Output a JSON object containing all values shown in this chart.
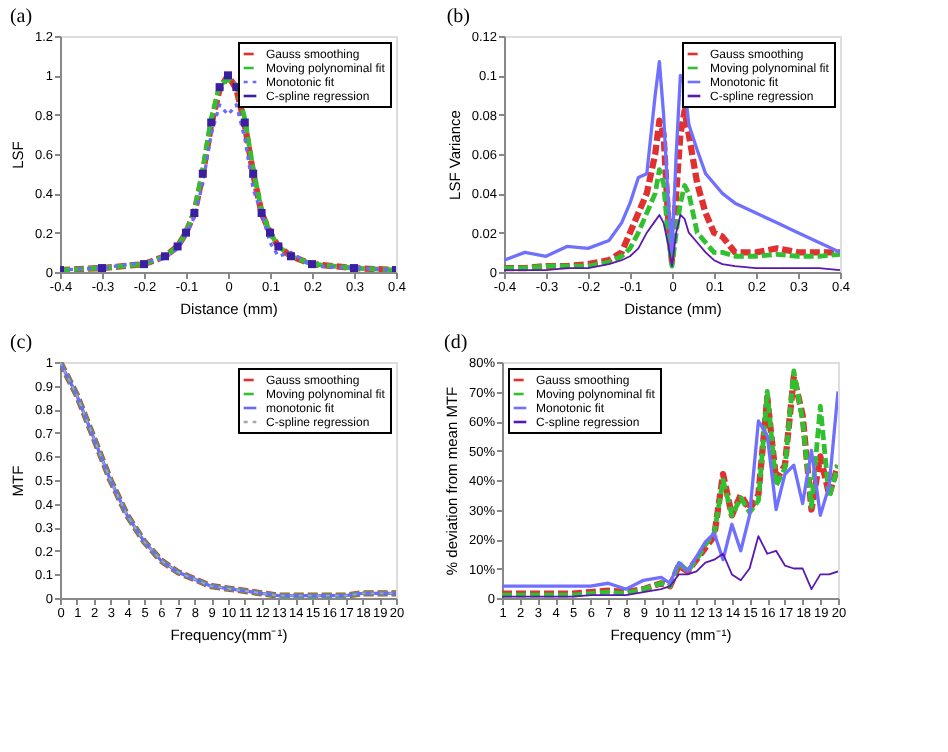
{
  "chart_data": [
    {
      "type": "line",
      "title": "(a)",
      "xlabel": "Distance (mm)",
      "ylabel": "LSF",
      "xlim": [
        -0.4,
        0.4
      ],
      "xticks": [
        -0.4,
        -0.3,
        -0.2,
        -0.1,
        0,
        0.1,
        0.2,
        0.3,
        0.4
      ],
      "ylim": [
        0,
        1.2
      ],
      "yticks": [
        0,
        0.2,
        0.4,
        0.6,
        0.8,
        1,
        1.2
      ],
      "legend": "top right",
      "x": [
        -0.4,
        -0.3,
        -0.2,
        -0.15,
        -0.12,
        -0.1,
        -0.08,
        -0.06,
        -0.04,
        -0.02,
        0,
        0.02,
        0.04,
        0.06,
        0.08,
        0.1,
        0.12,
        0.15,
        0.2,
        0.3,
        0.4
      ],
      "series": [
        {
          "name": "Gauss smoothing",
          "color": "#e03030",
          "line_style": "dashed",
          "values": [
            0.01,
            0.02,
            0.04,
            0.08,
            0.13,
            0.2,
            0.3,
            0.5,
            0.75,
            0.93,
            1.0,
            0.93,
            0.75,
            0.5,
            0.3,
            0.2,
            0.13,
            0.08,
            0.04,
            0.02,
            0.01
          ]
        },
        {
          "name": "Moving polynominal fit",
          "color": "#30c030",
          "line_style": "dashed",
          "values": [
            0.01,
            0.02,
            0.04,
            0.08,
            0.13,
            0.2,
            0.31,
            0.52,
            0.78,
            0.95,
            0.98,
            0.95,
            0.78,
            0.52,
            0.31,
            0.2,
            0.13,
            0.08,
            0.04,
            0.02,
            0.01
          ]
        },
        {
          "name": "Monotonic fit",
          "color": "#6a6aff",
          "line_style": "dotted",
          "values": [
            0.01,
            0.02,
            0.05,
            0.07,
            0.12,
            0.19,
            0.28,
            0.45,
            0.7,
            0.85,
            0.8,
            0.85,
            0.68,
            0.42,
            0.3,
            0.15,
            0.08,
            0.1,
            0.03,
            0.02,
            0.01
          ]
        },
        {
          "name": "C-spline regression",
          "color": "#3a20a0",
          "type": "scatter",
          "marker": "square",
          "values": [
            0.01,
            0.02,
            0.04,
            0.08,
            0.13,
            0.2,
            0.3,
            0.5,
            0.76,
            0.94,
            1.0,
            0.94,
            0.76,
            0.5,
            0.3,
            0.2,
            0.13,
            0.08,
            0.04,
            0.02,
            0.01
          ]
        }
      ]
    },
    {
      "type": "line",
      "title": "(b)",
      "xlabel": "Distance (mm)",
      "ylabel": "LSF Variance",
      "xlim": [
        -0.4,
        0.4
      ],
      "xticks": [
        -0.4,
        -0.3,
        -0.2,
        -0.1,
        0,
        0.1,
        0.2,
        0.3,
        0.4
      ],
      "ylim": [
        0,
        0.12
      ],
      "yticks": [
        0,
        0.02,
        0.04,
        0.06,
        0.08,
        0.1,
        0.12
      ],
      "legend": "top right",
      "x": [
        -0.4,
        -0.35,
        -0.3,
        -0.25,
        -0.2,
        -0.15,
        -0.12,
        -0.1,
        -0.08,
        -0.06,
        -0.04,
        -0.03,
        -0.02,
        -0.01,
        0,
        0.01,
        0.02,
        0.03,
        0.04,
        0.06,
        0.08,
        0.1,
        0.12,
        0.15,
        0.2,
        0.25,
        0.3,
        0.35,
        0.4
      ],
      "series": [
        {
          "name": "Gauss smoothing",
          "color": "#e03030",
          "line_style": "dashed",
          "values": [
            0.002,
            0.002,
            0.003,
            0.003,
            0.004,
            0.006,
            0.01,
            0.02,
            0.03,
            0.04,
            0.06,
            0.077,
            0.07,
            0.03,
            0.005,
            0.04,
            0.07,
            0.082,
            0.07,
            0.045,
            0.03,
            0.02,
            0.018,
            0.01,
            0.01,
            0.012,
            0.01,
            0.01,
            0.01
          ]
        },
        {
          "name": "Moving polynominal fit",
          "color": "#30c030",
          "line_style": "dashed",
          "values": [
            0.002,
            0.002,
            0.003,
            0.003,
            0.003,
            0.005,
            0.008,
            0.012,
            0.02,
            0.03,
            0.04,
            0.052,
            0.045,
            0.02,
            0.003,
            0.02,
            0.035,
            0.044,
            0.04,
            0.02,
            0.015,
            0.01,
            0.01,
            0.008,
            0.008,
            0.009,
            0.008,
            0.008,
            0.009
          ]
        },
        {
          "name": "Monotonic fit",
          "color": "#7070ff",
          "line_style": "solid",
          "values": [
            0.006,
            0.01,
            0.008,
            0.013,
            0.012,
            0.016,
            0.025,
            0.035,
            0.048,
            0.05,
            0.09,
            0.107,
            0.08,
            0.04,
            0.01,
            0.06,
            0.1,
            0.095,
            0.075,
            0.062,
            0.05,
            0.045,
            0.04,
            0.035,
            0.03,
            0.025,
            0.02,
            0.015,
            0.01
          ]
        },
        {
          "name": "C-spline regression",
          "color": "#5a18b0",
          "line_style": "solid",
          "values": [
            0.001,
            0.001,
            0.001,
            0.002,
            0.002,
            0.004,
            0.006,
            0.008,
            0.012,
            0.02,
            0.026,
            0.029,
            0.025,
            0.015,
            0.003,
            0.02,
            0.029,
            0.027,
            0.02,
            0.015,
            0.01,
            0.006,
            0.004,
            0.003,
            0.002,
            0.002,
            0.002,
            0.002,
            0.001
          ]
        }
      ]
    },
    {
      "type": "line",
      "title": "(c)",
      "xlabel": "Frequency(mm⁻¹)",
      "ylabel": "MTF",
      "xlim": [
        0,
        20
      ],
      "xticks": [
        0,
        1,
        2,
        3,
        4,
        5,
        6,
        7,
        8,
        9,
        10,
        11,
        12,
        13,
        14,
        15,
        16,
        17,
        18,
        19,
        20
      ],
      "ylim": [
        0,
        1
      ],
      "yticks": [
        0,
        0.1,
        0.2,
        0.3,
        0.4,
        0.5,
        0.6,
        0.7,
        0.8,
        0.9,
        1
      ],
      "legend": "top right",
      "x": [
        0,
        1,
        2,
        3,
        4,
        5,
        6,
        7,
        8,
        9,
        10,
        11,
        12,
        13,
        14,
        15,
        16,
        17,
        18,
        19,
        20
      ],
      "series": [
        {
          "name": "Gauss smoothing",
          "color": "#e03030",
          "line_style": "dashed",
          "values": [
            1.0,
            0.86,
            0.68,
            0.5,
            0.35,
            0.24,
            0.16,
            0.11,
            0.08,
            0.05,
            0.04,
            0.03,
            0.02,
            0.01,
            0.01,
            0.01,
            0.01,
            0.01,
            0.02,
            0.02,
            0.02
          ]
        },
        {
          "name": "Moving polynominal fit",
          "color": "#30c030",
          "line_style": "dashed",
          "values": [
            1.0,
            0.86,
            0.68,
            0.5,
            0.35,
            0.24,
            0.16,
            0.11,
            0.08,
            0.05,
            0.04,
            0.03,
            0.02,
            0.01,
            0.01,
            0.01,
            0.01,
            0.01,
            0.02,
            0.02,
            0.02
          ]
        },
        {
          "name": "monotonic fit",
          "color": "#6a6aff",
          "line_style": "solid",
          "values": [
            1.0,
            0.86,
            0.68,
            0.5,
            0.35,
            0.24,
            0.16,
            0.11,
            0.08,
            0.05,
            0.04,
            0.03,
            0.02,
            0.01,
            0.01,
            0.01,
            0.01,
            0.01,
            0.02,
            0.02,
            0.02
          ]
        },
        {
          "name": "C-spline regression",
          "color": "#a8a8a8",
          "line_style": "dotted",
          "values": [
            1.0,
            0.86,
            0.68,
            0.5,
            0.35,
            0.24,
            0.16,
            0.11,
            0.08,
            0.05,
            0.04,
            0.03,
            0.02,
            0.01,
            0.01,
            0.01,
            0.01,
            0.01,
            0.02,
            0.02,
            0.02
          ]
        }
      ]
    },
    {
      "type": "line",
      "title": "(d)",
      "xlabel": "Frequency (mm⁻¹)",
      "ylabel": "% deviation from mean MTF",
      "xlim": [
        1,
        20
      ],
      "xticks": [
        1,
        2,
        3,
        4,
        5,
        6,
        7,
        8,
        9,
        10,
        11,
        12,
        13,
        14,
        15,
        16,
        17,
        18,
        19,
        20
      ],
      "ylim": [
        0,
        80
      ],
      "yticks": [
        0,
        {
          "value": 10,
          "label": "10%"
        },
        {
          "value": 20,
          "label": "20%"
        },
        {
          "value": 30,
          "label": "30%"
        },
        {
          "value": 40,
          "label": "40%"
        },
        {
          "value": 50,
          "label": "50%"
        },
        {
          "value": 60,
          "label": "60%"
        },
        {
          "value": 70,
          "label": "70%"
        },
        {
          "value": 80,
          "label": "80%"
        }
      ],
      "legend": "top left",
      "x": [
        1,
        2,
        3,
        4,
        5,
        6,
        7,
        8,
        9,
        10,
        10.5,
        11,
        11.5,
        12,
        12.5,
        13,
        13.5,
        14,
        14.5,
        15,
        15.5,
        16,
        16.5,
        17,
        17.5,
        18,
        18.5,
        19,
        19.5,
        20
      ],
      "series": [
        {
          "name": "Gauss smoothing",
          "color": "#e03030",
          "line_style": "dashed",
          "values": [
            1.5,
            1.5,
            1.5,
            1.5,
            1.5,
            2,
            2.5,
            2,
            3,
            5,
            4,
            11,
            9,
            13,
            17,
            21,
            42,
            28,
            35,
            30,
            35,
            68,
            40,
            45,
            75,
            62,
            30,
            48,
            35,
            45
          ]
        },
        {
          "name": "Moving polynominal fit",
          "color": "#30c030",
          "line_style": "dashed",
          "values": [
            1,
            1,
            1,
            1,
            1,
            1.5,
            2,
            1.5,
            3,
            5,
            4,
            12,
            9,
            13,
            18,
            22,
            40,
            28,
            34,
            29,
            33,
            70,
            38,
            44,
            77,
            60,
            31,
            65,
            34,
            45
          ]
        },
        {
          "name": "Monotonic fit",
          "color": "#7070ff",
          "line_style": "solid",
          "values": [
            4,
            4,
            4,
            4,
            4,
            4,
            5,
            3,
            6,
            7,
            5,
            12,
            9,
            14,
            19,
            22,
            13,
            25,
            16,
            28,
            60,
            55,
            30,
            42,
            45,
            32,
            50,
            28,
            38,
            70
          ]
        },
        {
          "name": "C-spline regression",
          "color": "#5a18b0",
          "line_style": "solid",
          "values": [
            0.5,
            0.5,
            0.5,
            0.5,
            0.5,
            1,
            1,
            1,
            2,
            3,
            4,
            8,
            8,
            9,
            12,
            13,
            15,
            8,
            6,
            10,
            21,
            15,
            16,
            11,
            10,
            10,
            3,
            8,
            8,
            9
          ]
        }
      ]
    }
  ]
}
